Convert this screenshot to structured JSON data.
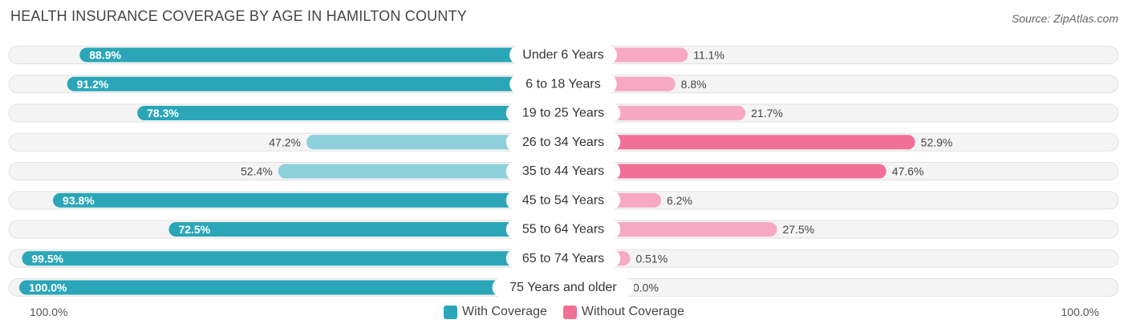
{
  "title": "HEALTH INSURANCE COVERAGE BY AGE IN HAMILTON COUNTY",
  "source": "Source: ZipAtlas.com",
  "colors": {
    "with_strong": "#2aa6b8",
    "with_light": "#8dd0db",
    "without_strong": "#f07097",
    "without_light": "#f7a8c2",
    "track": "#efefef"
  },
  "chart_data": {
    "type": "bar",
    "orientation": "horizontal-diverging",
    "categories": [
      "Under 6 Years",
      "6 to 18 Years",
      "19 to 25 Years",
      "26 to 34 Years",
      "35 to 44 Years",
      "45 to 54 Years",
      "55 to 64 Years",
      "65 to 74 Years",
      "75 Years and older"
    ],
    "series": [
      {
        "name": "With Coverage",
        "values": [
          88.9,
          91.2,
          78.3,
          47.2,
          52.4,
          93.8,
          72.5,
          99.5,
          100.0
        ],
        "labels": [
          "88.9%",
          "91.2%",
          "78.3%",
          "47.2%",
          "52.4%",
          "93.8%",
          "72.5%",
          "99.5%",
          "100.0%"
        ]
      },
      {
        "name": "Without Coverage",
        "values": [
          11.1,
          8.8,
          21.7,
          52.9,
          47.6,
          6.2,
          27.5,
          0.51,
          0.0
        ],
        "labels": [
          "11.1%",
          "8.8%",
          "21.7%",
          "52.9%",
          "47.6%",
          "6.2%",
          "27.5%",
          "0.51%",
          "0.0%"
        ]
      }
    ],
    "xlim": [
      0,
      100
    ],
    "axis_left_label": "100.0%",
    "axis_right_label": "100.0%",
    "legend_position": "bottom-center"
  }
}
